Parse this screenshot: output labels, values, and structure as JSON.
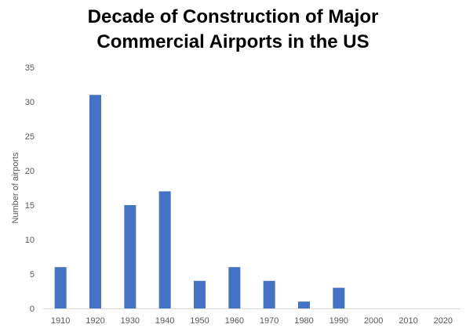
{
  "chart_data": {
    "type": "bar",
    "title_lines": [
      "Decade of Construction of Major",
      "Commercial Airports in the US"
    ],
    "xlabel": "",
    "ylabel": "Number of airports",
    "categories": [
      "1910",
      "1920",
      "1930",
      "1940",
      "1950",
      "1960",
      "1970",
      "1980",
      "1990",
      "2000",
      "2010",
      "2020"
    ],
    "series": [
      {
        "values": [
          6,
          31,
          15,
          17,
          4,
          6,
          4,
          1,
          3,
          0,
          0,
          0
        ]
      }
    ],
    "ylim": [
      0,
      35
    ],
    "yticks": [
      "0",
      "5",
      "10",
      "15",
      "20",
      "25",
      "30",
      "35"
    ],
    "grid": false,
    "legend": "none",
    "colors": {
      "bar": "#4472C4",
      "axis": "#D9D9D9",
      "tick_text": "#595959"
    }
  }
}
